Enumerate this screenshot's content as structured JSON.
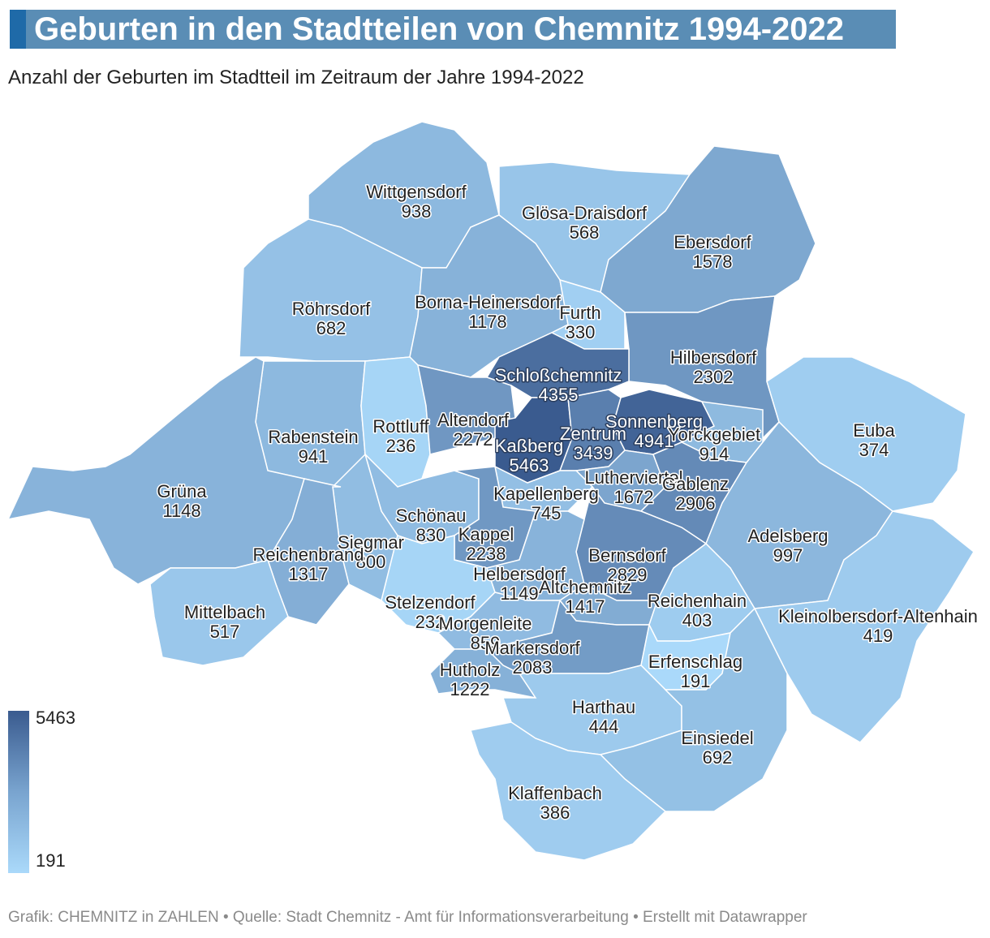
{
  "header": {
    "title": "Geburten in den Stadtteilen von Chemnitz 1994-2022",
    "subtitle": "Anzahl der Geburten im Stadtteil im Zeitraum der Jahre 1994-2022"
  },
  "footer": {
    "text": "Grafik: CHEMNITZ in ZAHLEN • Quelle: Stadt Chemnitz - Amt für Informationsverarbeitung • Erstellt mit Datawrapper"
  },
  "legend": {
    "max": "5463",
    "min": "191",
    "max_color": "#3a5b8f",
    "min_color": "#aad9fa"
  },
  "districts": [
    {
      "name": "Wittgensdorf",
      "value": 938
    },
    {
      "name": "Glösa-Draisdorf",
      "value": 568
    },
    {
      "name": "Ebersdorf",
      "value": 1578
    },
    {
      "name": "Röhrsdorf",
      "value": 682
    },
    {
      "name": "Borna-Heinersdorf",
      "value": 1178
    },
    {
      "name": "Furth",
      "value": 330
    },
    {
      "name": "Hilbersdorf",
      "value": 2302
    },
    {
      "name": "Schloßchemnitz",
      "value": 4355
    },
    {
      "name": "Rabenstein",
      "value": 941
    },
    {
      "name": "Rottluff",
      "value": 236
    },
    {
      "name": "Altendorf",
      "value": 2272
    },
    {
      "name": "Sonnenberg",
      "value": 4941
    },
    {
      "name": "Yorckgebiet",
      "value": 914
    },
    {
      "name": "Euba",
      "value": 374
    },
    {
      "name": "Kaßberg",
      "value": 5463
    },
    {
      "name": "Zentrum",
      "value": 3439
    },
    {
      "name": "Grüna",
      "value": 1148
    },
    {
      "name": "Lutherviertel",
      "value": 1672
    },
    {
      "name": "Gablenz",
      "value": 2906
    },
    {
      "name": "Kapellenberg",
      "value": 745
    },
    {
      "name": "Schönau",
      "value": 830
    },
    {
      "name": "Kappel",
      "value": 2238
    },
    {
      "name": "Siegmar",
      "value": 800
    },
    {
      "name": "Reichenbrand",
      "value": 1317
    },
    {
      "name": "Adelsberg",
      "value": 997
    },
    {
      "name": "Bernsdorf",
      "value": 2829
    },
    {
      "name": "Helbersdorf",
      "value": 1149
    },
    {
      "name": "Altchemnitz",
      "value": 1417
    },
    {
      "name": "Mittelbach",
      "value": 517
    },
    {
      "name": "Stelzendorf",
      "value": 232
    },
    {
      "name": "Reichenhain",
      "value": 403
    },
    {
      "name": "Kleinolbersdorf-Altenhain",
      "value": 419
    },
    {
      "name": "Morgenleite",
      "value": 859
    },
    {
      "name": "Markersdorf",
      "value": 2083
    },
    {
      "name": "Erfenschlag",
      "value": 191
    },
    {
      "name": "Hutholz",
      "value": 1222
    },
    {
      "name": "Harthau",
      "value": 444
    },
    {
      "name": "Einsiedel",
      "value": 692
    },
    {
      "name": "Klaffenbach",
      "value": 386
    }
  ]
}
